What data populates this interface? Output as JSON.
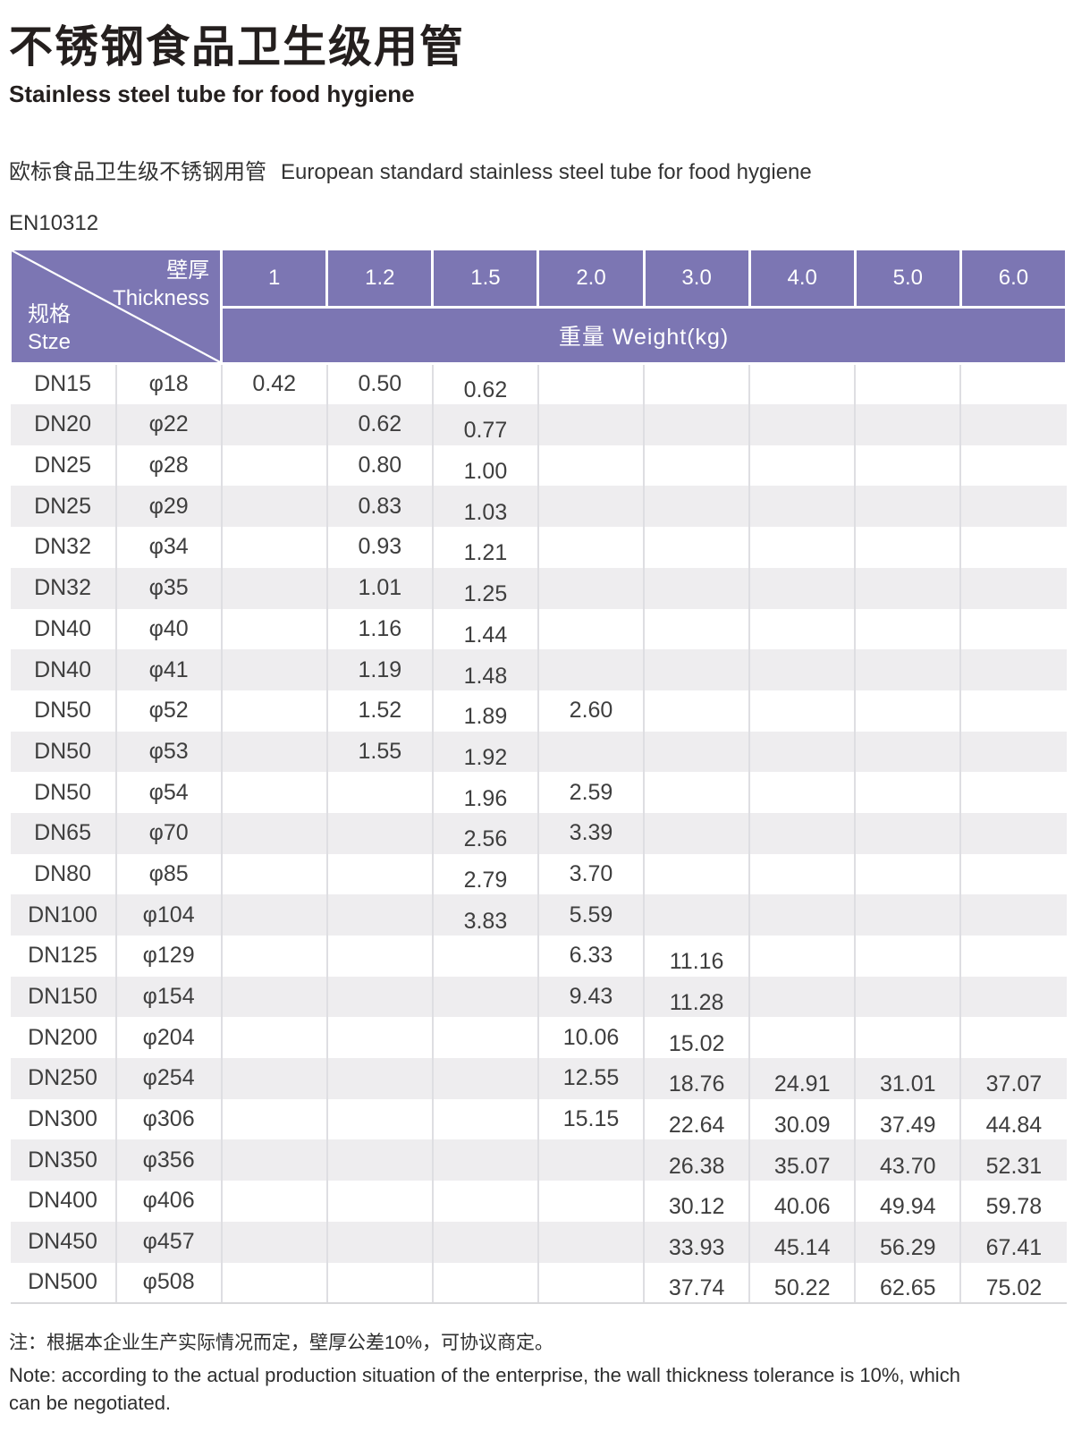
{
  "header": {
    "title_cn": "不锈钢食品卫生级用管",
    "title_en": "Stainless steel tube for food hygiene",
    "intro_cn": "欧标食品卫生级不锈钢用管",
    "intro_en": "European standard stainless steel tube for food hygiene",
    "standard": "EN10312"
  },
  "table": {
    "corner": {
      "thickness_cn": "壁厚",
      "thickness_en": "Thickness",
      "size_cn": "规格",
      "size_en": "Stze"
    },
    "thickness_headers": [
      "1",
      "1.2",
      "1.5",
      "2.0",
      "3.0",
      "4.0",
      "5.0",
      "6.0"
    ],
    "weight_header": "重量 Weight(kg)",
    "rows": [
      {
        "size": "DN15",
        "dia": "φ18",
        "weights": [
          "0.42",
          "0.50",
          "0.62",
          "",
          "",
          "",
          "",
          ""
        ]
      },
      {
        "size": "DN20",
        "dia": "φ22",
        "weights": [
          "",
          "0.62",
          "0.77",
          "",
          "",
          "",
          "",
          ""
        ]
      },
      {
        "size": "DN25",
        "dia": "φ28",
        "weights": [
          "",
          "0.80",
          "1.00",
          "",
          "",
          "",
          "",
          ""
        ]
      },
      {
        "size": "DN25",
        "dia": "φ29",
        "weights": [
          "",
          "0.83",
          "1.03",
          "",
          "",
          "",
          "",
          ""
        ]
      },
      {
        "size": "DN32",
        "dia": "φ34",
        "weights": [
          "",
          "0.93",
          "1.21",
          "",
          "",
          "",
          "",
          ""
        ]
      },
      {
        "size": "DN32",
        "dia": "φ35",
        "weights": [
          "",
          "1.01",
          "1.25",
          "",
          "",
          "",
          "",
          ""
        ]
      },
      {
        "size": "DN40",
        "dia": "φ40",
        "weights": [
          "",
          "1.16",
          "1.44",
          "",
          "",
          "",
          "",
          ""
        ]
      },
      {
        "size": "DN40",
        "dia": "φ41",
        "weights": [
          "",
          "1.19",
          "1.48",
          "",
          "",
          "",
          "",
          ""
        ]
      },
      {
        "size": "DN50",
        "dia": "φ52",
        "weights": [
          "",
          "1.52",
          "1.89",
          "2.60",
          "",
          "",
          "",
          ""
        ]
      },
      {
        "size": "DN50",
        "dia": "φ53",
        "weights": [
          "",
          "1.55",
          "1.92",
          "",
          "",
          "",
          "",
          ""
        ]
      },
      {
        "size": "DN50",
        "dia": "φ54",
        "weights": [
          "",
          "",
          "1.96",
          "2.59",
          "",
          "",
          "",
          ""
        ]
      },
      {
        "size": "DN65",
        "dia": "φ70",
        "weights": [
          "",
          "",
          "2.56",
          "3.39",
          "",
          "",
          "",
          ""
        ]
      },
      {
        "size": "DN80",
        "dia": "φ85",
        "weights": [
          "",
          "",
          "2.79",
          "3.70",
          "",
          "",
          "",
          ""
        ]
      },
      {
        "size": "DN100",
        "dia": "φ104",
        "weights": [
          "",
          "",
          "3.83",
          "5.59",
          "",
          "",
          "",
          ""
        ]
      },
      {
        "size": "DN125",
        "dia": "φ129",
        "weights": [
          "",
          "",
          "",
          "6.33",
          "11.16",
          "",
          "",
          ""
        ]
      },
      {
        "size": "DN150",
        "dia": "φ154",
        "weights": [
          "",
          "",
          "",
          "9.43",
          "11.28",
          "",
          "",
          ""
        ]
      },
      {
        "size": "DN200",
        "dia": "φ204",
        "weights": [
          "",
          "",
          "",
          "10.06",
          "15.02",
          "",
          "",
          ""
        ]
      },
      {
        "size": "DN250",
        "dia": "φ254",
        "weights": [
          "",
          "",
          "",
          "12.55",
          "18.76",
          "24.91",
          "31.01",
          "37.07"
        ]
      },
      {
        "size": "DN300",
        "dia": "φ306",
        "weights": [
          "",
          "",
          "",
          "15.15",
          "22.64",
          "30.09",
          "37.49",
          "44.84"
        ]
      },
      {
        "size": "DN350",
        "dia": "φ356",
        "weights": [
          "",
          "",
          "",
          "",
          "26.38",
          "35.07",
          "43.70",
          "52.31"
        ]
      },
      {
        "size": "DN400",
        "dia": "φ406",
        "weights": [
          "",
          "",
          "",
          "",
          "30.12",
          "40.06",
          "49.94",
          "59.78"
        ]
      },
      {
        "size": "DN450",
        "dia": "φ457",
        "weights": [
          "",
          "",
          "",
          "",
          "33.93",
          "45.14",
          "56.29",
          "67.41"
        ]
      },
      {
        "size": "DN500",
        "dia": "φ508",
        "weights": [
          "",
          "",
          "",
          "",
          "37.74",
          "50.22",
          "62.65",
          "75.02"
        ]
      }
    ]
  },
  "notes": {
    "cn": "注：根据本企业生产实际情况而定，壁厚公差10%，可协议商定。",
    "en": "Note: according to the actual production situation of the enterprise, the wall thickness tolerance is 10%, which can be negotiated."
  },
  "colors": {
    "header_purple": "#7c76b3",
    "stripe_gray": "#eeedef",
    "title_text": "#241f1e",
    "body_text": "#3e3e3e"
  }
}
